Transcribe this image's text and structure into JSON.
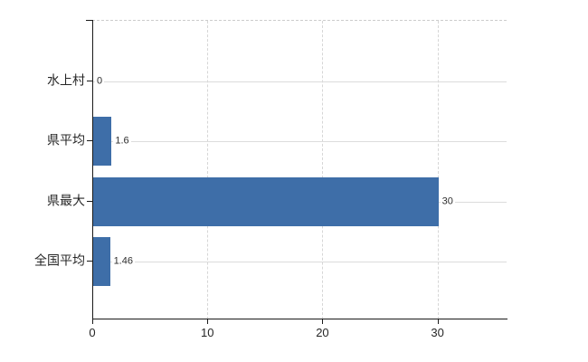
{
  "chart_data": {
    "type": "bar",
    "orientation": "horizontal",
    "categories": [
      "水上村",
      "県平均",
      "県最大",
      "全国平均"
    ],
    "values": [
      0,
      1.6,
      30,
      1.46
    ],
    "value_labels": [
      "0",
      "1.6",
      "30",
      "1.46"
    ],
    "xticks": [
      0,
      10,
      20,
      30
    ],
    "xtick_labels": [
      "0",
      "10",
      "20",
      "30"
    ],
    "xlim": [
      0,
      36
    ],
    "grid": true,
    "legend_position": "none",
    "bar_color": "#3e6ea8",
    "axis_color": "#1a1a1a",
    "grid_color": "#dcdcdc",
    "text_color": "#262626",
    "background_color": "#ffffff"
  }
}
